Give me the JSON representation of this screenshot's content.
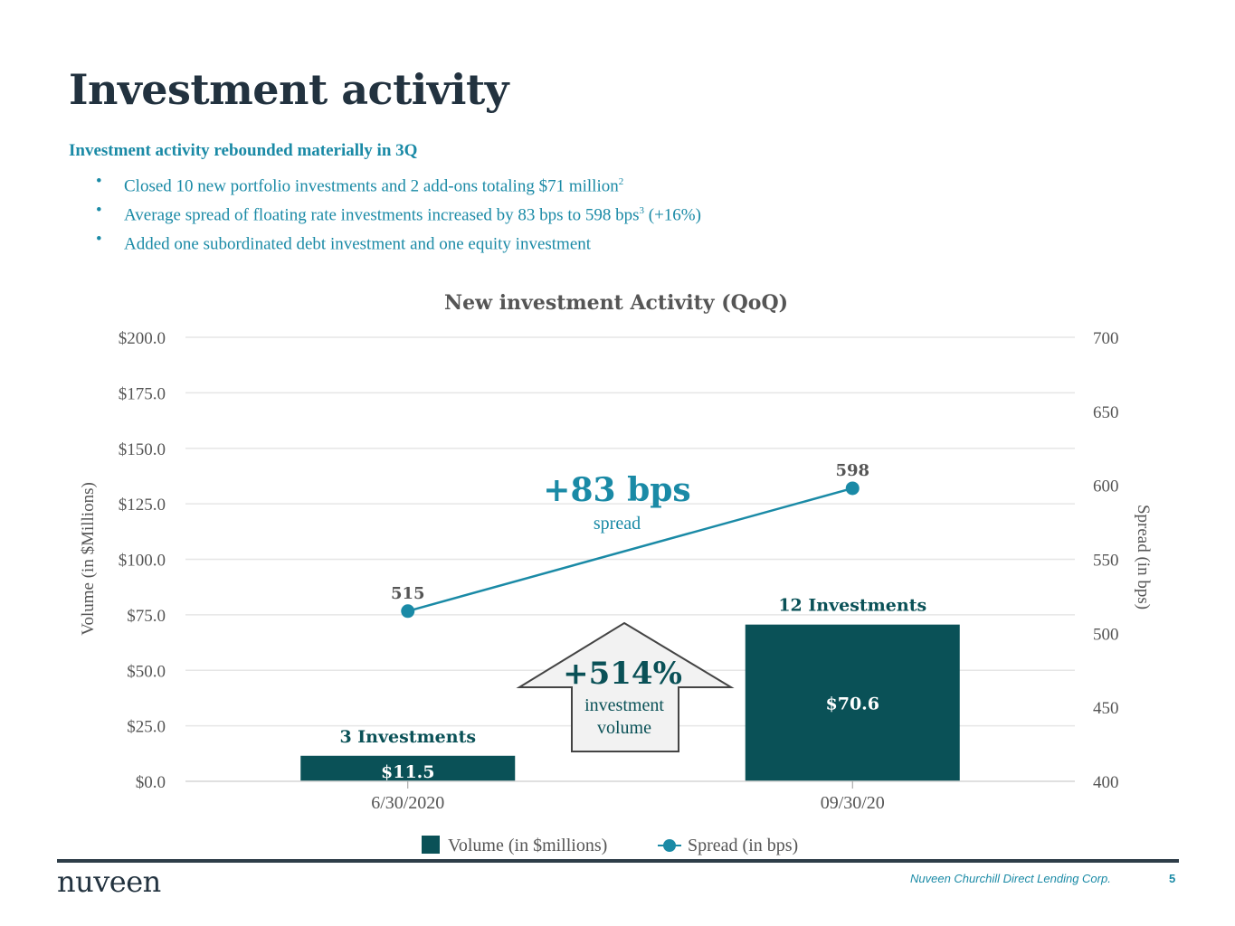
{
  "slide": {
    "title": "Investment activity",
    "subhead": "Investment activity rebounded materially in 3Q",
    "bullets": [
      {
        "text": "Closed 10 new portfolio investments and 2 add-ons totaling $71 million",
        "sup": "2",
        "after": ""
      },
      {
        "text": "Average spread of floating rate investments increased by 83 bps to 598 bps",
        "sup": "3",
        "after": " (+16%)"
      },
      {
        "text": "Added one subordinated debt investment and one equity investment",
        "sup": "",
        "after": ""
      }
    ],
    "bullet_glyph": "•"
  },
  "footer": {
    "logo": "nuveen",
    "company": "Nuveen Churchill Direct Lending Corp.",
    "page": "5"
  },
  "colors": {
    "bar": "#0a5157",
    "line": "#1a8aa6",
    "teal_text": "#1a8aa6",
    "dark_teal_text": "#0a5157",
    "grid": "#e6e6e6",
    "axis_text": "#555555",
    "arrow_fill": "#f2f2f2",
    "arrow_stroke": "#444444"
  },
  "chart_data": {
    "type": "bar",
    "title": "New investment Activity (QoQ)",
    "categories": [
      "6/30/2020",
      "09/30/20"
    ],
    "series": [
      {
        "name": "Volume (in $millions)",
        "type": "bar",
        "axis": "left",
        "values": [
          11.5,
          70.6
        ],
        "data_labels": [
          "$11.5",
          "$70.6"
        ],
        "annotations": [
          "3 Investments",
          "12 Investments"
        ]
      },
      {
        "name": "Spread (in bps)",
        "type": "line",
        "axis": "right",
        "values": [
          515,
          598
        ],
        "data_labels": [
          "515",
          "598"
        ]
      }
    ],
    "ylabel": "Volume (in $Millions)",
    "y2label": "Spread (in bps)",
    "ylim": [
      0,
      200
    ],
    "y2lim": [
      400,
      700
    ],
    "yticks": [
      "$0.0",
      "$25.0",
      "$50.0",
      "$75.0",
      "$100.0",
      "$125.0",
      "$150.0",
      "$175.0",
      "$200.0"
    ],
    "yticks_values": [
      0,
      25,
      50,
      75,
      100,
      125,
      150,
      175,
      200
    ],
    "y2ticks": [
      "400",
      "450",
      "500",
      "550",
      "600",
      "650",
      "700"
    ],
    "y2ticks_values": [
      400,
      450,
      500,
      550,
      600,
      650,
      700
    ],
    "grid": true,
    "legend": "bottom",
    "callouts": {
      "spread_change": "+83 bps",
      "spread_caption": "spread",
      "volume_change": "+514%",
      "volume_caption_1": "investment",
      "volume_caption_2": "volume"
    }
  }
}
